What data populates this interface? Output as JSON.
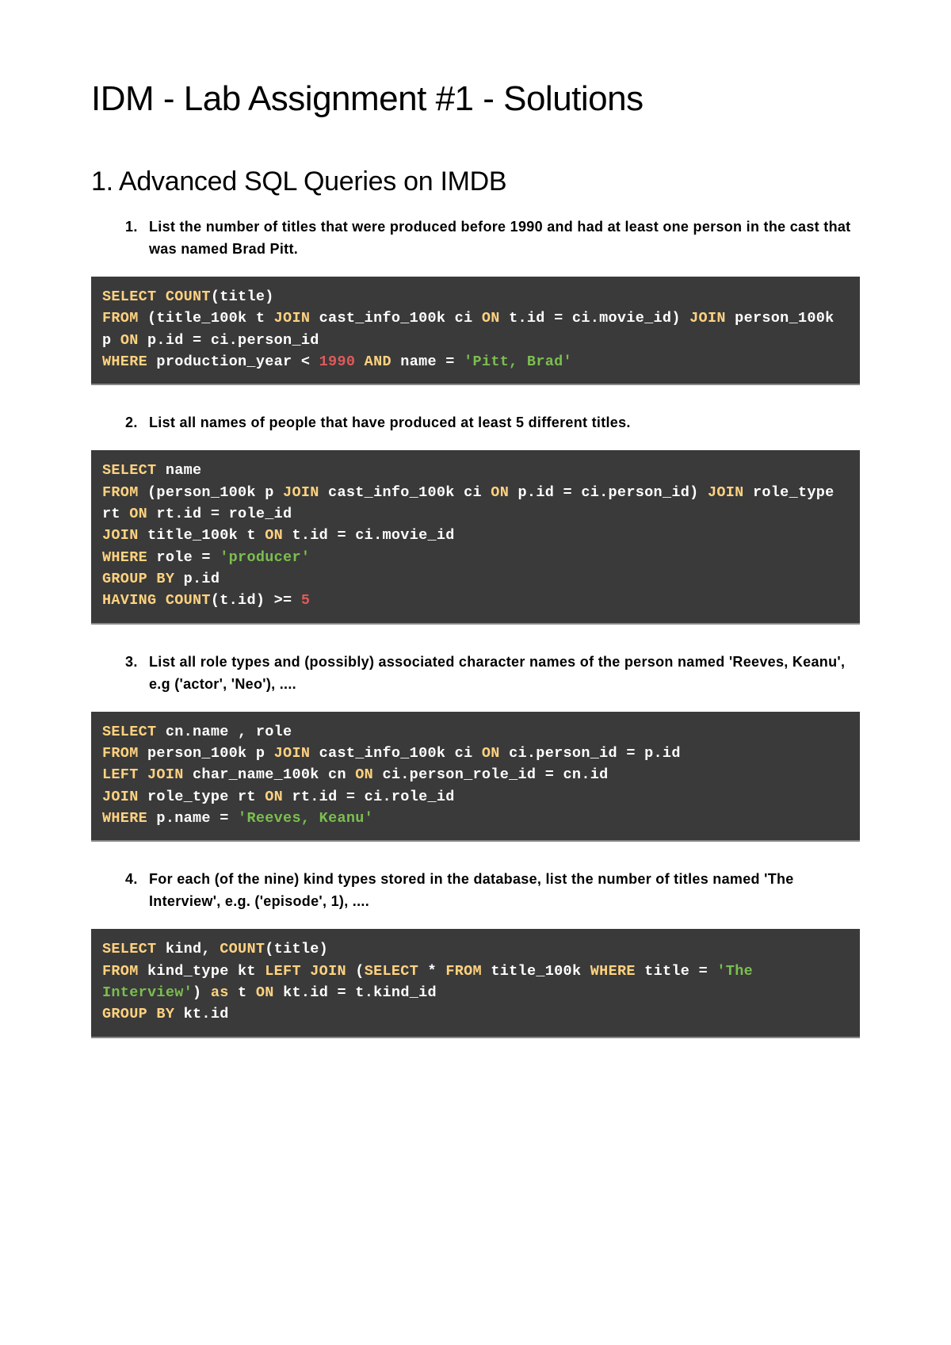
{
  "page_title": "IDM - Lab Assignment #1 - Solutions",
  "section_title": "1. Advanced SQL Queries on IMDB",
  "questions": {
    "q1": "List the number of titles that were produced before 1990 and had at least one person in the cast that was named Brad Pitt.",
    "q2": "List all names of people that have produced at least 5 different titles.",
    "q3": "List all role types and (possibly) associated character names of the person named 'Reeves, Keanu', e.g ('actor', 'Neo'), ....",
    "q4": "For each (of the nine) kind types stored in the database, list the number of titles named 'The Interview', e.g. ('episode', 1), ...."
  },
  "code": {
    "c1": {
      "tokens": [
        {
          "t": "SELECT",
          "c": "kw"
        },
        {
          "t": " "
        },
        {
          "t": "COUNT",
          "c": "kw"
        },
        {
          "t": "(title)\n"
        },
        {
          "t": "FROM",
          "c": "kw"
        },
        {
          "t": " (title_100k t "
        },
        {
          "t": "JOIN",
          "c": "kw"
        },
        {
          "t": " cast_info_100k ci "
        },
        {
          "t": "ON",
          "c": "kw"
        },
        {
          "t": " t.id = ci.movie_id) "
        },
        {
          "t": "JOIN",
          "c": "kw"
        },
        {
          "t": " person_100k p "
        },
        {
          "t": "ON",
          "c": "kw"
        },
        {
          "t": " p.id = ci.person_id\n"
        },
        {
          "t": "WHERE",
          "c": "kw"
        },
        {
          "t": " production_year < "
        },
        {
          "t": "1990",
          "c": "num"
        },
        {
          "t": " "
        },
        {
          "t": "AND",
          "c": "kw"
        },
        {
          "t": " name = "
        },
        {
          "t": "'Pitt, Brad'",
          "c": "str"
        }
      ]
    },
    "c2": {
      "tokens": [
        {
          "t": "SELECT",
          "c": "kw"
        },
        {
          "t": " name\n"
        },
        {
          "t": "FROM",
          "c": "kw"
        },
        {
          "t": " (person_100k p "
        },
        {
          "t": "JOIN",
          "c": "kw"
        },
        {
          "t": " cast_info_100k ci "
        },
        {
          "t": "ON",
          "c": "kw"
        },
        {
          "t": " p.id = ci.person_id) "
        },
        {
          "t": "JOIN",
          "c": "kw"
        },
        {
          "t": " role_type rt "
        },
        {
          "t": "ON",
          "c": "kw"
        },
        {
          "t": " rt.id = role_id\n"
        },
        {
          "t": "JOIN",
          "c": "kw"
        },
        {
          "t": " title_100k t "
        },
        {
          "t": "ON",
          "c": "kw"
        },
        {
          "t": " t.id = ci.movie_id\n"
        },
        {
          "t": "WHERE",
          "c": "kw"
        },
        {
          "t": " role = "
        },
        {
          "t": "'producer'",
          "c": "str"
        },
        {
          "t": "\n"
        },
        {
          "t": "GROUP BY",
          "c": "kw"
        },
        {
          "t": " p.id\n"
        },
        {
          "t": "HAVING",
          "c": "kw"
        },
        {
          "t": " "
        },
        {
          "t": "COUNT",
          "c": "kw"
        },
        {
          "t": "(t.id) >= "
        },
        {
          "t": "5",
          "c": "num"
        }
      ]
    },
    "c3": {
      "tokens": [
        {
          "t": "SELECT",
          "c": "kw"
        },
        {
          "t": " cn.name , role\n"
        },
        {
          "t": "FROM",
          "c": "kw"
        },
        {
          "t": " person_100k p "
        },
        {
          "t": "JOIN",
          "c": "kw"
        },
        {
          "t": " cast_info_100k ci "
        },
        {
          "t": "ON",
          "c": "kw"
        },
        {
          "t": " ci.person_id = p.id\n"
        },
        {
          "t": "LEFT JOIN",
          "c": "kw"
        },
        {
          "t": " char_name_100k cn "
        },
        {
          "t": "ON",
          "c": "kw"
        },
        {
          "t": " ci.person_role_id = cn.id\n"
        },
        {
          "t": "JOIN",
          "c": "kw"
        },
        {
          "t": " role_type rt "
        },
        {
          "t": "ON",
          "c": "kw"
        },
        {
          "t": " rt.id = ci.role_id\n"
        },
        {
          "t": "WHERE",
          "c": "kw"
        },
        {
          "t": " p.name = "
        },
        {
          "t": "'Reeves, Keanu'",
          "c": "str"
        }
      ]
    },
    "c4": {
      "tokens": [
        {
          "t": "SELECT",
          "c": "kw"
        },
        {
          "t": " kind, "
        },
        {
          "t": "COUNT",
          "c": "kw"
        },
        {
          "t": "(title)\n"
        },
        {
          "t": "FROM",
          "c": "kw"
        },
        {
          "t": " kind_type kt "
        },
        {
          "t": "LEFT JOIN",
          "c": "kw"
        },
        {
          "t": " ("
        },
        {
          "t": "SELECT",
          "c": "kw"
        },
        {
          "t": " * "
        },
        {
          "t": "FROM",
          "c": "kw"
        },
        {
          "t": " title_100k "
        },
        {
          "t": "WHERE",
          "c": "kw"
        },
        {
          "t": " title = "
        },
        {
          "t": "'The Interview'",
          "c": "str"
        },
        {
          "t": ") "
        },
        {
          "t": "as",
          "c": "kw"
        },
        {
          "t": " t "
        },
        {
          "t": "ON",
          "c": "kw"
        },
        {
          "t": " kt.id = t.kind_id\n"
        },
        {
          "t": "GROUP BY",
          "c": "kw"
        },
        {
          "t": " kt.id"
        }
      ]
    }
  },
  "style": {
    "bg": "#ffffff",
    "text_color": "#000000",
    "code_bg": "#3a3a3a",
    "code_text": "#ffffff",
    "kw_color": "#ffd27f",
    "num_color": "#e05a5a",
    "str_color": "#7bbf4f",
    "h1_size": 44,
    "h2_size": 34,
    "body_size": 18,
    "code_size": 18.5
  }
}
